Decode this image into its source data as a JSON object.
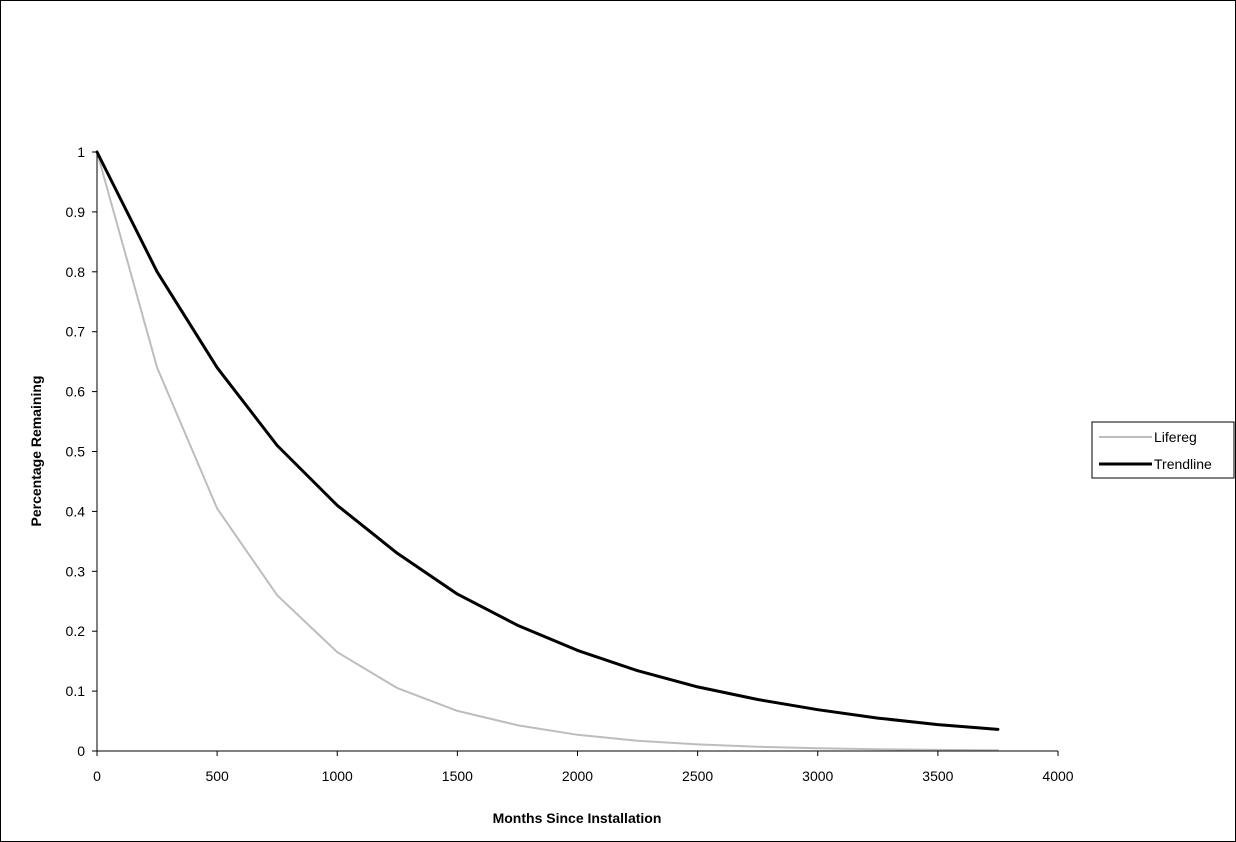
{
  "chart_data": {
    "type": "line",
    "xlabel": "Months Since Installation",
    "ylabel": "Percentage Remaining",
    "xlim": [
      0,
      4000
    ],
    "ylim": [
      0,
      1
    ],
    "x_ticks": [
      0,
      500,
      1000,
      1500,
      2000,
      2500,
      3000,
      3500,
      4000
    ],
    "y_ticks": [
      0,
      0.1,
      0.2,
      0.3,
      0.4,
      0.5,
      0.6,
      0.7,
      0.8,
      0.9,
      1
    ],
    "grid": false,
    "legend_position": "right",
    "series": [
      {
        "name": "Lifereg",
        "color": "#bdbdbd",
        "x": [
          0,
          250,
          500,
          750,
          1000,
          1250,
          1500,
          1750,
          2000,
          2250,
          2500,
          2750,
          3000,
          3250,
          3500,
          3750
        ],
        "y": [
          1.0,
          0.64,
          0.405,
          0.26,
          0.165,
          0.105,
          0.067,
          0.043,
          0.027,
          0.017,
          0.011,
          0.007,
          0.0045,
          0.0029,
          0.0018,
          0.0012
        ]
      },
      {
        "name": "Trendline",
        "color": "#000000",
        "x": [
          0,
          250,
          500,
          750,
          1000,
          1250,
          1500,
          1750,
          2000,
          2250,
          2500,
          2750,
          3000,
          3250,
          3500,
          3750
        ],
        "y": [
          1.0,
          0.8,
          0.64,
          0.51,
          0.41,
          0.33,
          0.262,
          0.21,
          0.168,
          0.134,
          0.107,
          0.086,
          0.069,
          0.055,
          0.044,
          0.036
        ]
      }
    ]
  }
}
